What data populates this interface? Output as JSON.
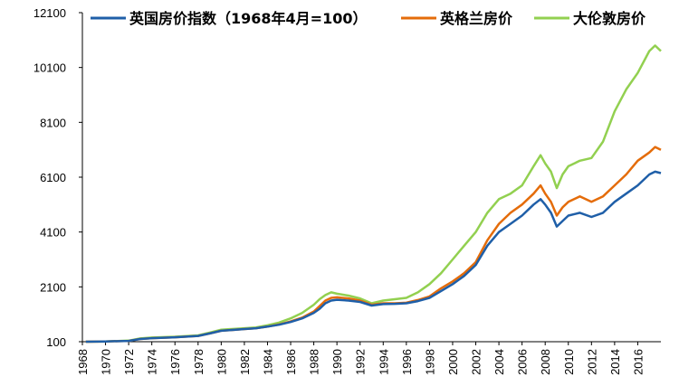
{
  "chart_data": {
    "type": "line",
    "title": "",
    "xlabel": "",
    "ylabel": "",
    "ylim": [
      100,
      12100
    ],
    "y_ticks": [
      100,
      2100,
      4100,
      6100,
      8100,
      10100,
      12100
    ],
    "y_tick_labels": [
      "100",
      "2100",
      "4100",
      "6100",
      "8100",
      "10100",
      "12100"
    ],
    "xlim": [
      1968,
      2018
    ],
    "x_ticks": [
      1968,
      1970,
      1972,
      1974,
      1976,
      1978,
      1980,
      1982,
      1984,
      1986,
      1988,
      1990,
      1992,
      1994,
      1996,
      1998,
      2000,
      2002,
      2004,
      2006,
      2008,
      2010,
      2012,
      2014,
      2016
    ],
    "x_tick_labels": [
      "1968",
      "1970",
      "1972",
      "1974",
      "1976",
      "1978",
      "1980",
      "1982",
      "1984",
      "1986",
      "1988",
      "1990",
      "1992",
      "1994",
      "1996",
      "1998",
      "2000",
      "2002",
      "2004",
      "2006",
      "2008",
      "2010",
      "2012",
      "2014",
      "2016"
    ],
    "legend_position": "top",
    "grid": false,
    "series": [
      {
        "name": "英国房价指数（1968年4月=100）",
        "color": "#1f5fa8",
        "x": [
          1968.3,
          1970,
          1972,
          1973,
          1974,
          1976,
          1978,
          1979,
          1980,
          1982,
          1983,
          1984,
          1985,
          1986,
          1987,
          1988,
          1988.5,
          1989,
          1989.5,
          1990,
          1991,
          1992,
          1993,
          1994,
          1995,
          1996,
          1997,
          1998,
          1999,
          2000,
          2001,
          2002,
          2003,
          2004,
          2005,
          2006,
          2007,
          2007.6,
          2008,
          2008.5,
          2009,
          2009.5,
          2010,
          2011,
          2012,
          2013,
          2014,
          2015,
          2016,
          2017,
          2017.5,
          2018
        ],
        "y": [
          100,
          110,
          130,
          200,
          230,
          260,
          310,
          400,
          500,
          560,
          590,
          650,
          720,
          820,
          950,
          1150,
          1300,
          1500,
          1600,
          1630,
          1600,
          1550,
          1420,
          1470,
          1480,
          1500,
          1580,
          1700,
          1950,
          2200,
          2500,
          2900,
          3600,
          4100,
          4400,
          4700,
          5100,
          5300,
          5100,
          4800,
          4300,
          4500,
          4700,
          4800,
          4650,
          4800,
          5200,
          5500,
          5800,
          6200,
          6300,
          6250
        ]
      },
      {
        "name": "英格兰房价",
        "color": "#e46c0a",
        "x": [
          1968.3,
          1970,
          1972,
          1973,
          1974,
          1976,
          1978,
          1979,
          1980,
          1982,
          1983,
          1984,
          1985,
          1986,
          1987,
          1988,
          1988.5,
          1989,
          1989.5,
          1990,
          1991,
          1992,
          1993,
          1994,
          1995,
          1996,
          1997,
          1998,
          1999,
          2000,
          2001,
          2002,
          2003,
          2004,
          2005,
          2006,
          2007,
          2007.6,
          2008,
          2008.5,
          2009,
          2009.5,
          2010,
          2011,
          2012,
          2013,
          2014,
          2015,
          2016,
          2017,
          2017.5,
          2018
        ],
        "y": [
          100,
          110,
          130,
          200,
          230,
          260,
          310,
          400,
          500,
          560,
          590,
          650,
          730,
          840,
          980,
          1200,
          1400,
          1600,
          1700,
          1720,
          1680,
          1600,
          1450,
          1500,
          1500,
          1520,
          1620,
          1750,
          2050,
          2300,
          2600,
          3000,
          3800,
          4400,
          4800,
          5100,
          5500,
          5800,
          5500,
          5200,
          4700,
          5000,
          5200,
          5400,
          5200,
          5400,
          5800,
          6200,
          6700,
          7000,
          7200,
          7100
        ]
      },
      {
        "name": "大伦敦房价",
        "color": "#92d050",
        "x": [
          1968.3,
          1970,
          1972,
          1973,
          1974,
          1976,
          1978,
          1979,
          1980,
          1982,
          1983,
          1984,
          1985,
          1986,
          1987,
          1988,
          1988.5,
          1989,
          1989.5,
          1990,
          1991,
          1992,
          1993,
          1994,
          1995,
          1996,
          1997,
          1998,
          1999,
          2000,
          2001,
          2002,
          2003,
          2004,
          2005,
          2006,
          2007,
          2007.6,
          2008,
          2008.5,
          2009,
          2009.5,
          2010,
          2011,
          2012,
          2013,
          2014,
          2015,
          2016,
          2017,
          2017.5,
          2018
        ],
        "y": [
          100,
          110,
          140,
          220,
          250,
          280,
          330,
          430,
          540,
          590,
          620,
          700,
          800,
          950,
          1150,
          1450,
          1650,
          1800,
          1900,
          1850,
          1780,
          1680,
          1500,
          1600,
          1650,
          1700,
          1900,
          2200,
          2600,
          3100,
          3600,
          4100,
          4800,
          5300,
          5500,
          5800,
          6500,
          6900,
          6600,
          6300,
          5700,
          6200,
          6500,
          6700,
          6800,
          7400,
          8500,
          9300,
          9900,
          10700,
          10900,
          10700
        ]
      }
    ]
  }
}
